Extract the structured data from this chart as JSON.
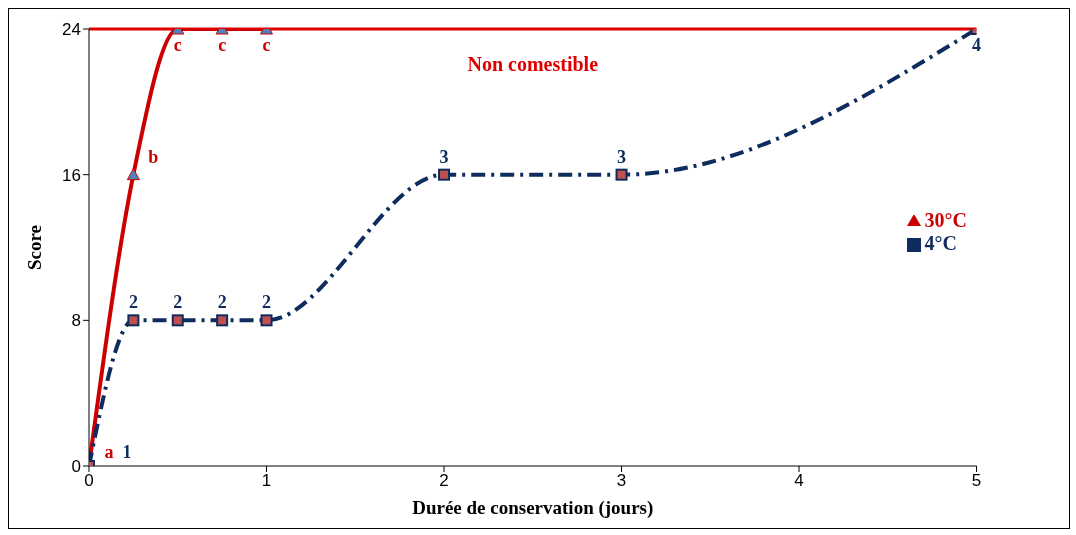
{
  "chart_data": {
    "type": "line",
    "xlabel": "Durée de conservation (jours)",
    "ylabel": "Score",
    "xlim": [
      0,
      5
    ],
    "xticks": [
      0,
      1,
      2,
      3,
      4,
      5
    ],
    "ylim": [
      0,
      24
    ],
    "yticks": [
      0,
      8,
      16,
      24
    ],
    "grid": false,
    "legend": "right",
    "series": [
      {
        "name": "30°C",
        "color": "#cc0000",
        "x": [
          0,
          0.25,
          0.5,
          0.75,
          1
        ],
        "values": [
          0,
          16,
          24,
          24,
          24
        ],
        "marker": "triangle",
        "line_style": "solid"
      },
      {
        "name": "4°C",
        "color": "#0f2c5e",
        "x": [
          0,
          0.25,
          0.5,
          0.75,
          1,
          2,
          3,
          5
        ],
        "values": [
          0,
          8,
          8,
          8,
          8,
          16,
          16,
          24
        ],
        "marker": "square",
        "line_style": "dashed"
      }
    ],
    "annotations": [
      {
        "text": "a",
        "x": 0,
        "y": 0
      },
      {
        "text": "b",
        "x": 0.25,
        "y": 16
      },
      {
        "text": "c",
        "x": 0.5,
        "y": 24
      },
      {
        "text": "c",
        "x": 0.75,
        "y": 24
      },
      {
        "text": "c",
        "x": 1,
        "y": 24
      },
      {
        "text": "1",
        "x": 0,
        "y": 0
      },
      {
        "text": "2",
        "x": 0.25,
        "y": 8
      },
      {
        "text": "2",
        "x": 0.5,
        "y": 8
      },
      {
        "text": "2",
        "x": 0.75,
        "y": 8
      },
      {
        "text": "2",
        "x": 1,
        "y": 8
      },
      {
        "text": "3",
        "x": 2,
        "y": 16
      },
      {
        "text": "3",
        "x": 3,
        "y": 16
      },
      {
        "text": "4",
        "x": 5,
        "y": 24
      }
    ],
    "ref_lines": [
      {
        "axis": "y",
        "value": 24,
        "label": "Non comestible",
        "color": "#e00000",
        "line_style": "solid"
      }
    ]
  }
}
